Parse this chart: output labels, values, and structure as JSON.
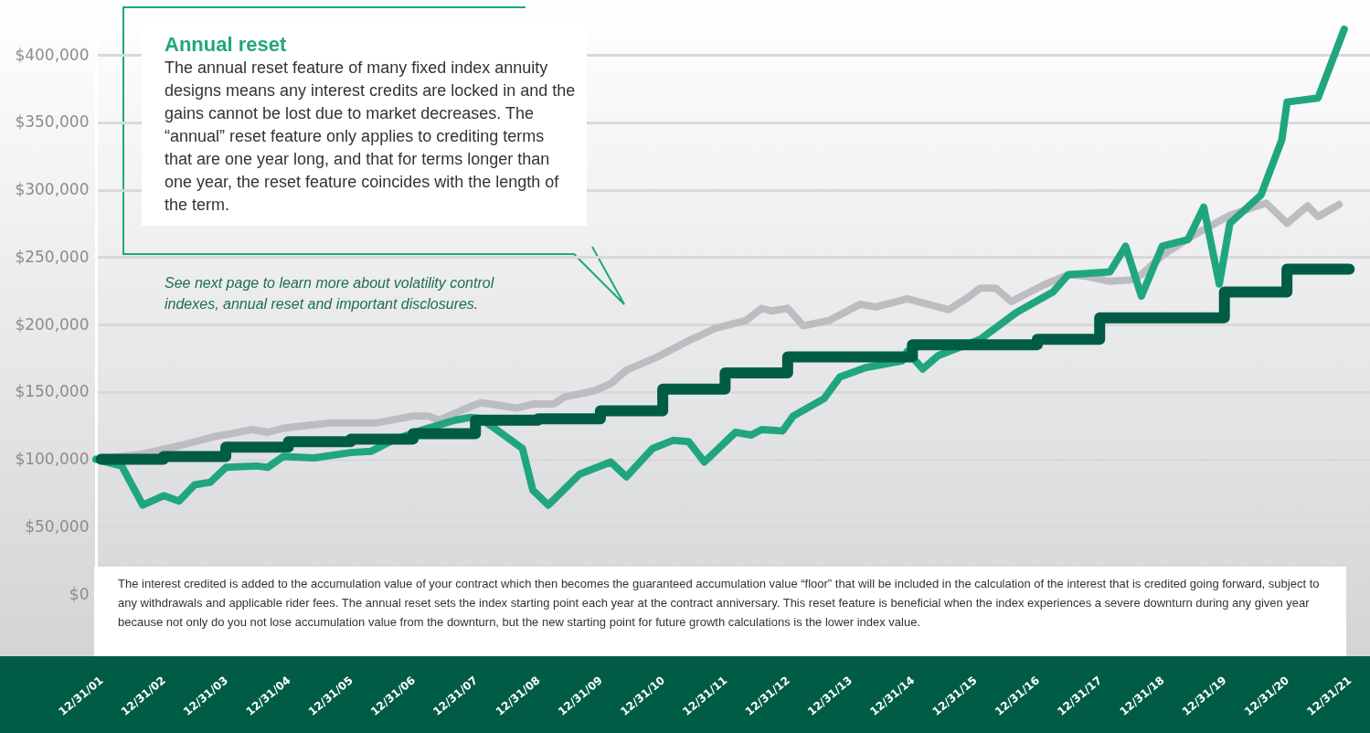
{
  "chart_data": {
    "type": "line",
    "xlim": [
      "2001-12-01",
      "2022-05-01"
    ],
    "ylim": [
      0,
      440000
    ],
    "xticks": [
      {
        "value": "2001-12-31",
        "label": "12/31/01"
      },
      {
        "value": "2002-12-31",
        "label": "12/31/02"
      },
      {
        "value": "2003-12-31",
        "label": "12/31/03"
      },
      {
        "value": "2004-12-31",
        "label": "12/31/04"
      },
      {
        "value": "2005-12-31",
        "label": "12/31/05"
      },
      {
        "value": "2006-12-31",
        "label": "12/31/06"
      },
      {
        "value": "2007-12-31",
        "label": "12/31/07"
      },
      {
        "value": "2008-12-31",
        "label": "12/31/08"
      },
      {
        "value": "2009-12-31",
        "label": "12/31/09"
      },
      {
        "value": "2010-12-31",
        "label": "12/31/10"
      },
      {
        "value": "2011-12-31",
        "label": "12/31/11"
      },
      {
        "value": "2012-12-31",
        "label": "12/31/12"
      },
      {
        "value": "2013-12-31",
        "label": "12/31/13"
      },
      {
        "value": "2014-12-31",
        "label": "12/31/14"
      },
      {
        "value": "2015-12-31",
        "label": "12/31/15"
      },
      {
        "value": "2016-12-31",
        "label": "12/31/16"
      },
      {
        "value": "2017-12-31",
        "label": "12/31/17"
      },
      {
        "value": "2018-12-31",
        "label": "12/31/18"
      },
      {
        "value": "2019-12-31",
        "label": "12/31/19"
      },
      {
        "value": "2020-12-31",
        "label": "12/31/20"
      },
      {
        "value": "2021-12-31",
        "label": "12/31/21"
      }
    ],
    "yticks": [
      {
        "value": 0,
        "label": "$0"
      },
      {
        "value": 50000,
        "label": "$50,000"
      },
      {
        "value": 100000,
        "label": "$100,000"
      },
      {
        "value": 150000,
        "label": "$150,000"
      },
      {
        "value": 200000,
        "label": "$200,000"
      },
      {
        "value": 250000,
        "label": "$250,000"
      },
      {
        "value": 300000,
        "label": "$300,000"
      },
      {
        "value": 350000,
        "label": "$350,000"
      },
      {
        "value": 400000,
        "label": "$400,000"
      }
    ],
    "grid": "y",
    "series": [
      {
        "type": "line",
        "color": "#bcbdc1",
        "x": [
          "2001-12",
          "2002-09",
          "2003-04",
          "2003-11",
          "2004-02",
          "2004-06",
          "2004-09",
          "2004-12",
          "2005-09",
          "2006-06",
          "2007-01",
          "2007-04",
          "2007-06",
          "2007-12",
          "2008-02",
          "2008-09",
          "2008-12",
          "2009-04",
          "2009-06",
          "2009-12",
          "2010-03",
          "2010-06",
          "2010-12",
          "2011-06",
          "2011-11",
          "2012-05",
          "2012-08",
          "2012-10",
          "2013-01",
          "2013-04",
          "2013-09",
          "2014-03",
          "2014-06",
          "2014-12",
          "2015-08",
          "2015-12",
          "2016-02",
          "2016-05",
          "2016-08",
          "2017-02",
          "2017-07",
          "2017-10",
          "2018-03",
          "2018-07",
          "2018-09",
          "2019-01",
          "2019-07",
          "2020-02",
          "2020-09",
          "2021-01",
          "2021-05",
          "2021-07",
          "2021-11"
        ],
        "values": [
          100000,
          104000,
          110000,
          117000,
          119000,
          122000,
          120000,
          123000,
          127000,
          127000,
          132000,
          132000,
          129000,
          139000,
          142000,
          138000,
          141000,
          141000,
          146000,
          151000,
          156000,
          166000,
          176000,
          188000,
          197000,
          203000,
          212000,
          210000,
          212000,
          199000,
          203000,
          215000,
          213000,
          219000,
          211000,
          221000,
          227000,
          227000,
          217000,
          229000,
          237000,
          236000,
          232000,
          233000,
          237000,
          251000,
          266000,
          281000,
          290000,
          275000,
          288000,
          280000,
          289000
        ]
      },
      {
        "type": "line",
        "color": "#20a67e",
        "x": [
          "2001-12",
          "2002-05",
          "2002-09",
          "2003-01",
          "2003-04",
          "2003-07",
          "2003-10",
          "2004-01",
          "2004-07",
          "2004-09",
          "2004-12",
          "2005-06",
          "2006-01",
          "2006-05",
          "2006-09",
          "2007-03",
          "2007-09",
          "2007-12",
          "2008-02",
          "2008-05",
          "2008-10",
          "2008-12",
          "2009-03",
          "2009-09",
          "2010-03",
          "2010-06",
          "2010-11",
          "2011-03",
          "2011-06",
          "2011-09",
          "2012-03",
          "2012-06",
          "2012-08",
          "2012-12",
          "2013-02",
          "2013-08",
          "2013-11",
          "2014-04",
          "2014-11",
          "2014-12",
          "2015-03",
          "2015-06",
          "2016-02",
          "2016-09",
          "2017-04",
          "2017-07",
          "2018-03",
          "2018-06",
          "2018-09",
          "2019-01",
          "2019-06",
          "2019-09",
          "2019-12",
          "2020-02",
          "2020-08",
          "2020-12",
          "2021-01",
          "2021-07",
          "2021-12"
        ],
        "values": [
          100000,
          95000,
          66000,
          73000,
          69000,
          81000,
          83000,
          94000,
          95000,
          94000,
          102000,
          101000,
          105000,
          106000,
          114000,
          122000,
          129000,
          131000,
          130000,
          122000,
          108000,
          77000,
          66000,
          89000,
          98000,
          87000,
          108000,
          114000,
          113000,
          98000,
          120000,
          118000,
          122000,
          121000,
          132000,
          145000,
          161000,
          168000,
          173000,
          180000,
          167000,
          177000,
          189000,
          209000,
          224000,
          237000,
          239000,
          258000,
          221000,
          258000,
          263000,
          287000,
          230000,
          275000,
          296000,
          337000,
          365000,
          368000,
          419000
        ]
      },
      {
        "type": "step",
        "color": "#005c45",
        "x": [
          "2001-12-31",
          "2002-12-31",
          "2003-12-31",
          "2004-12-31",
          "2005-12-31",
          "2006-12-31",
          "2007-12-31",
          "2008-12-31",
          "2009-12-31",
          "2010-12-31",
          "2011-12-31",
          "2012-12-31",
          "2013-12-31",
          "2014-12-31",
          "2015-12-31",
          "2016-12-31",
          "2017-12-31",
          "2018-12-31",
          "2019-12-31",
          "2020-12-31",
          "2021-12-31"
        ],
        "values": [
          100000,
          102000,
          109000,
          113000,
          115000,
          119000,
          129000,
          130000,
          136000,
          152000,
          164000,
          176000,
          176000,
          185000,
          185000,
          189000,
          205000,
          205000,
          224000,
          241000,
          241000
        ]
      }
    ],
    "annotations": [
      "Annual reset",
      "The annual reset feature of many fixed index annuity designs means any interest credits are locked in and the gains cannot be lost due to market decreases. The “annual” reset feature only applies to crediting terms that are one year long, and that for terms longer than one year, the reset feature coincides with the length of the term.",
      "See next page to learn more about volatility control indexes, annual reset and important disclosures.",
      "The interest credited is added to the accumulation value of your contract which then becomes the guaranteed accumulation value “floor” that will be included in the calculation of the interest that is credited going forward, subject to any withdrawals and applicable rider fees. The annual reset sets the index starting point each year at the contract anniversary. This reset feature is beneficial when the index experiences a severe downturn during any given year because not only do you not lose accumulation value from the downturn, but the new starting point for future growth calculations is the lower index value."
    ]
  }
}
